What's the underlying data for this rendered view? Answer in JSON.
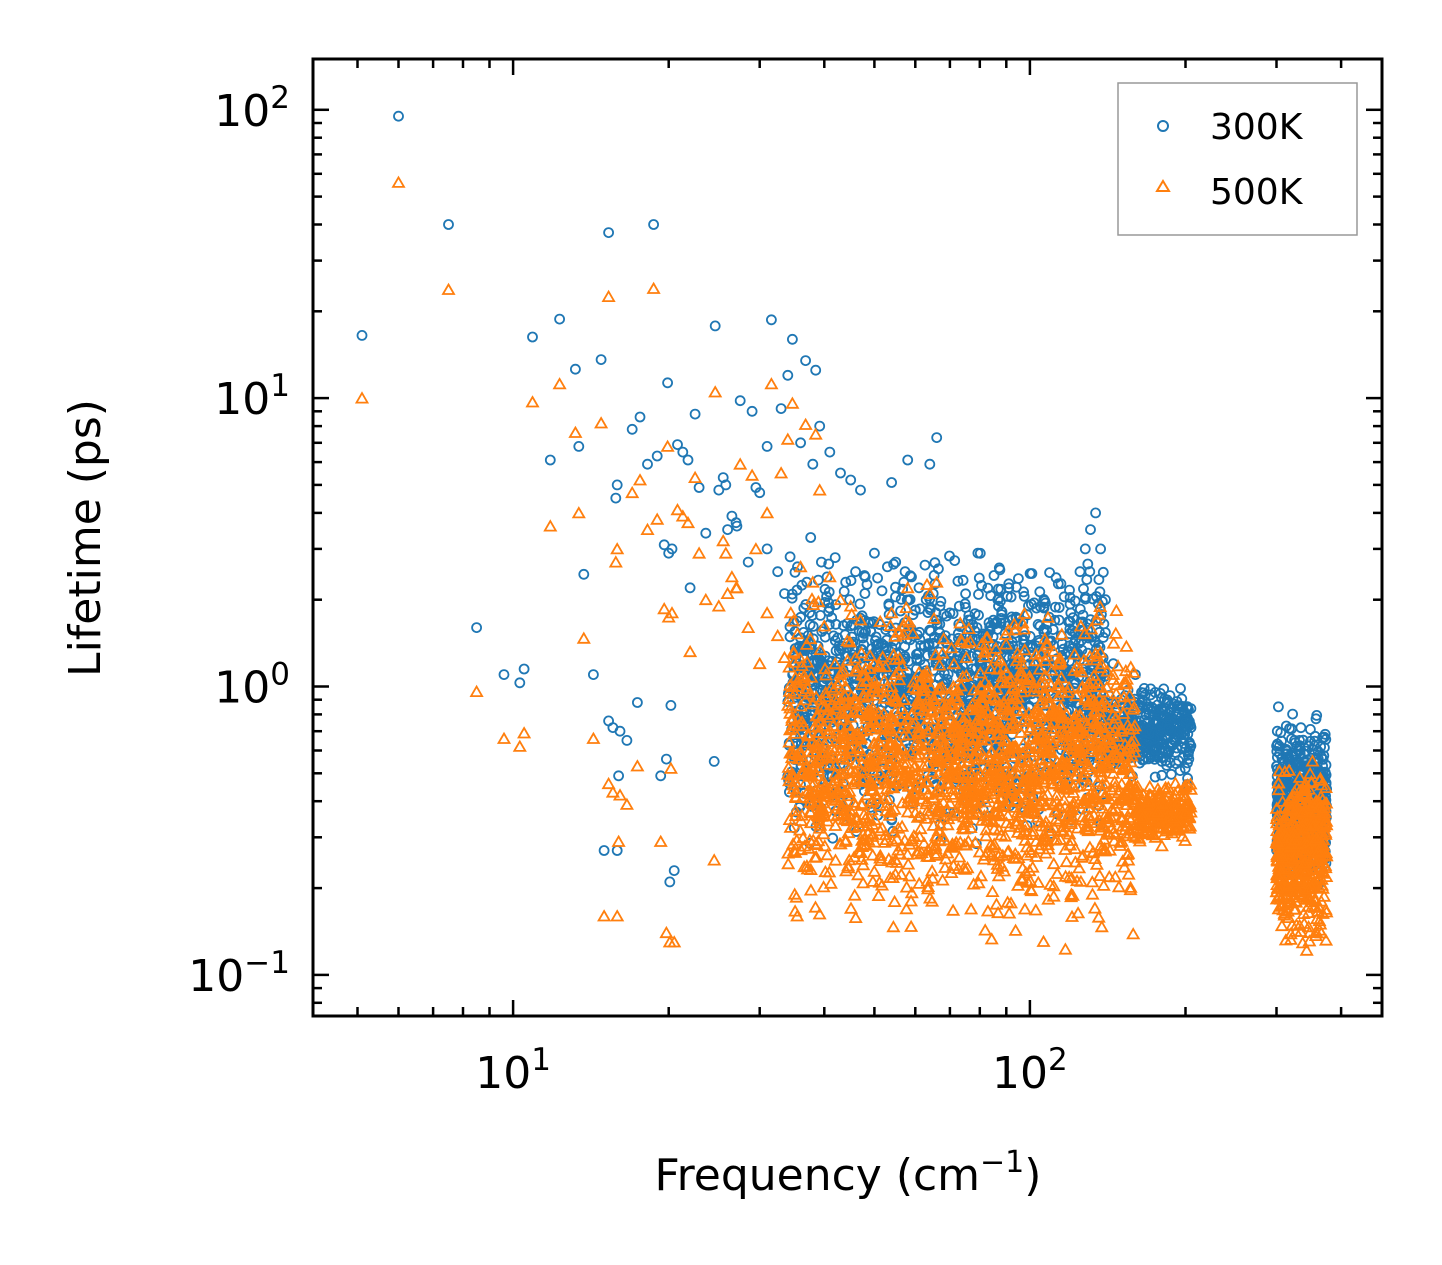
{
  "chart_data": {
    "type": "scatter",
    "xscale": "log",
    "yscale": "log",
    "xlim": [
      4.1,
      480
    ],
    "ylim": [
      0.072,
      150
    ],
    "xlabel": "Frequency (cm",
    "xlabel_sup": "−1",
    "xlabel_tail": ")",
    "ylabel": "Lifetime (ps)",
    "xticks": [
      {
        "value": 10,
        "base": "10",
        "exp": "1"
      },
      {
        "value": 100,
        "base": "10",
        "exp": "2"
      }
    ],
    "yticks": [
      {
        "value": 0.1,
        "base": "10",
        "exp": "−1"
      },
      {
        "value": 1,
        "base": "10",
        "exp": "0"
      },
      {
        "value": 10,
        "base": "10",
        "exp": "1"
      },
      {
        "value": 100,
        "base": "10",
        "exp": "2"
      }
    ],
    "legend": {
      "position": "top-right"
    },
    "series": [
      {
        "name": "300K",
        "marker": "circle",
        "color": "#1f77b4",
        "x": [
          6.0,
          7.5,
          5.1,
          10.9,
          12.3,
          13.2,
          11.8,
          13.4,
          8.5,
          9.6,
          10.3,
          10.5,
          13.7,
          14.3,
          14.8,
          15.3,
          15.8,
          15.9,
          17.0,
          17.6,
          18.2,
          18.7,
          19.0,
          19.3,
          19.9,
          20.3,
          20.8,
          21.3,
          21.8,
          22.5,
          22.9,
          23.6,
          24.6,
          25.5,
          27.5,
          29.0,
          31.6,
          34.0,
          34.7,
          36.8,
          38.5,
          39.2,
          19.6,
          19.8,
          20.2,
          20.5,
          20.1,
          24.5,
          15.3,
          15.6,
          16.1,
          16.6,
          17.4,
          15.0,
          15.9,
          16.0,
          20.0,
          22.0,
          25.0,
          26.0,
          27.1,
          28.5,
          30.0,
          31.0,
          32.5,
          33.5,
          35.5,
          37.0,
          39.5,
          40.5,
          42.0,
          44.0,
          46.0,
          48.0,
          50.0,
          53.0,
          55.0,
          57.0,
          59.0,
          61.0,
          63.0,
          65.0,
          67.0,
          70.0,
          73.0,
          76.0,
          79.0,
          82.0,
          85.0,
          88.0,
          92.0,
          96.0,
          100.0,
          105.0,
          110.0,
          115.0,
          120.0,
          125.0,
          128.0,
          131.0,
          134.0,
          137.0,
          140.0,
          145.0,
          150.0,
          155.0,
          160.0,
          165.0,
          170.0,
          175.0,
          180.0,
          185.0,
          190.0,
          195.0,
          200.0,
          205.0,
          66.0,
          64.0,
          58.0,
          54.0,
          47.0,
          45.0,
          43.0,
          41.0,
          38.0,
          36.0,
          33.0,
          31.0,
          29.5,
          27.0,
          26.5,
          25.8
        ],
        "y": [
          95.0,
          40.0,
          16.5,
          16.3,
          18.8,
          12.6,
          6.1,
          6.8,
          1.6,
          1.1,
          1.03,
          1.15,
          2.45,
          1.1,
          13.6,
          37.5,
          4.5,
          5.0,
          7.8,
          8.6,
          5.9,
          40.0,
          6.3,
          0.49,
          11.3,
          3.0,
          6.9,
          6.5,
          6.1,
          8.8,
          4.9,
          3.4,
          17.8,
          5.3,
          9.8,
          9.0,
          18.7,
          12.0,
          16.0,
          13.5,
          12.5,
          8.0,
          3.1,
          0.56,
          0.86,
          0.23,
          0.21,
          0.55,
          0.76,
          0.72,
          0.7,
          0.65,
          0.88,
          0.27,
          0.27,
          0.49,
          2.9,
          2.2,
          4.8,
          3.5,
          3.6,
          2.7,
          4.7,
          3.0,
          2.5,
          2.1,
          2.6,
          2.3,
          2.7,
          2.4,
          2.8,
          2.3,
          2.5,
          2.4,
          2.9,
          2.6,
          2.7,
          2.3,
          2.4,
          2.2,
          2.0,
          2.1,
          1.9,
          1.8,
          1.9,
          1.7,
          1.6,
          1.5,
          1.4,
          1.3,
          1.2,
          1.1,
          1.2,
          1.0,
          1.1,
          1.5,
          1.8,
          2.5,
          3.0,
          3.5,
          4.0,
          3.0,
          2.0,
          1.2,
          0.9,
          0.7,
          1.1,
          0.9,
          0.8,
          0.6,
          0.55,
          0.6,
          0.65,
          0.7,
          0.75,
          0.72,
          7.3,
          5.9,
          6.1,
          5.1,
          4.8,
          5.2,
          5.5,
          6.5,
          5.9,
          7.0,
          9.2,
          6.8,
          4.9,
          3.7,
          3.9,
          5.0
        ]
      },
      {
        "name": "500K",
        "marker": "triangle",
        "color": "#ff7f0e",
        "x": [
          6.0,
          7.5,
          5.1,
          10.9,
          12.3,
          13.2,
          11.8,
          13.4,
          8.5,
          9.6,
          10.3,
          10.5,
          13.7,
          14.3,
          14.8,
          15.3,
          15.8,
          15.9,
          17.0,
          17.6,
          18.2,
          18.7,
          19.0,
          19.3,
          19.9,
          20.3,
          20.8,
          21.3,
          21.8,
          22.5,
          22.9,
          23.6,
          24.6,
          25.5,
          27.5,
          29.0,
          31.6,
          34.0,
          34.7,
          36.8,
          38.5,
          39.2,
          19.6,
          19.8,
          20.2,
          20.5,
          20.1,
          24.5,
          15.3,
          15.6,
          16.1,
          16.6,
          17.4,
          15.0,
          15.9,
          16.0,
          20.0,
          22.0,
          25.0,
          26.0,
          27.1,
          28.5,
          30.0,
          31.0,
          32.5,
          33.5,
          35.5,
          37.0,
          39.5,
          40.5,
          42.0,
          44.0,
          46.0,
          48.0,
          50.0,
          53.0,
          55.0,
          57.0,
          59.0,
          61.0,
          63.0,
          65.0,
          67.0,
          70.0,
          73.0,
          76.0,
          79.0,
          82.0,
          85.0,
          88.0,
          92.0,
          96.0,
          100.0,
          105.0,
          110.0,
          115.0,
          120.0,
          125.0,
          128.0,
          131.0,
          134.0,
          137.0,
          140.0,
          145.0,
          150.0,
          155.0,
          160.0,
          165.0,
          170.0,
          175.0,
          180.0,
          185.0,
          190.0,
          195.0,
          200.0,
          205.0,
          66.0,
          64.0,
          58.0,
          54.0,
          47.0,
          45.0,
          43.0,
          41.0,
          38.0,
          36.0,
          33.0,
          31.0,
          29.5,
          27.0,
          26.5,
          25.8
        ],
        "y": [
          56.0,
          23.8,
          10.0,
          9.7,
          11.2,
          7.6,
          3.6,
          4.0,
          0.96,
          0.66,
          0.62,
          0.69,
          1.47,
          0.66,
          8.2,
          22.5,
          2.7,
          3.0,
          4.7,
          5.2,
          3.5,
          24.0,
          3.8,
          0.29,
          6.8,
          1.8,
          4.1,
          3.9,
          3.7,
          5.3,
          2.9,
          2.0,
          10.5,
          3.2,
          5.9,
          5.4,
          11.2,
          7.2,
          9.6,
          8.1,
          7.5,
          4.8,
          1.86,
          0.14,
          0.52,
          0.13,
          0.13,
          0.25,
          0.46,
          0.43,
          0.42,
          0.39,
          0.53,
          0.16,
          0.16,
          0.29,
          1.74,
          1.32,
          1.9,
          2.1,
          2.2,
          1.6,
          1.2,
          1.8,
          1.5,
          1.26,
          1.0,
          1.4,
          0.9,
          0.8,
          1.2,
          1.0,
          0.9,
          1.1,
          1.2,
          1.0,
          1.1,
          0.9,
          0.8,
          0.7,
          0.8,
          0.9,
          0.8,
          0.7,
          0.6,
          0.55,
          0.6,
          0.5,
          0.55,
          0.5,
          0.45,
          0.42,
          0.45,
          0.4,
          0.5,
          0.55,
          0.7,
          0.8,
          0.9,
          1.0,
          1.3,
          1.0,
          0.7,
          0.5,
          0.35,
          0.25,
          0.3,
          0.35,
          0.4,
          0.3,
          0.28,
          0.32,
          0.35,
          0.4,
          0.45,
          0.44,
          2.3,
          2.1,
          2.2,
          1.8,
          1.7,
          1.9,
          2.0,
          2.4,
          2.3,
          2.6,
          5.5,
          4.0,
          3.0,
          2.2,
          2.4,
          2.9
        ]
      }
    ],
    "clusters": [
      {
        "series": "300K",
        "xmin": 34,
        "xmax": 140,
        "ymin": 0.25,
        "ymax": 3.5,
        "n": 1700,
        "seed": 11
      },
      {
        "series": "300K",
        "xmin": 300,
        "xmax": 375,
        "ymin": 0.18,
        "ymax": 0.9,
        "n": 500,
        "seed": 12
      },
      {
        "series": "300K",
        "xmin": 140,
        "xmax": 205,
        "ymin": 0.45,
        "ymax": 1.1,
        "n": 350,
        "seed": 13
      },
      {
        "series": "500K",
        "xmin": 34,
        "xmax": 160,
        "ymin": 0.11,
        "ymax": 2.5,
        "n": 1900,
        "seed": 21
      },
      {
        "series": "500K",
        "xmin": 300,
        "xmax": 375,
        "ymin": 0.11,
        "ymax": 0.65,
        "n": 500,
        "seed": 22
      },
      {
        "series": "500K",
        "xmin": 160,
        "xmax": 205,
        "ymin": 0.27,
        "ymax": 0.5,
        "n": 200,
        "seed": 23
      }
    ]
  }
}
